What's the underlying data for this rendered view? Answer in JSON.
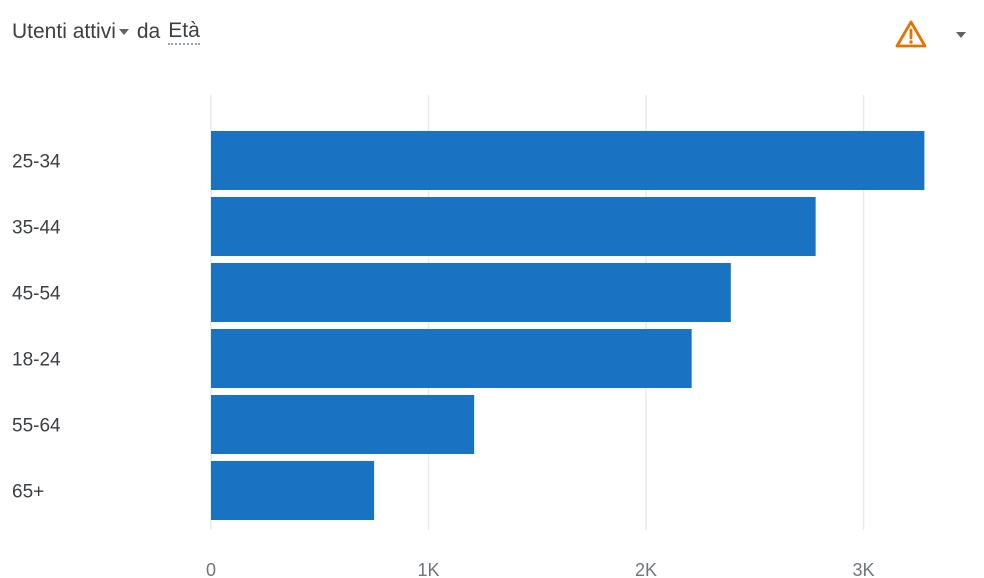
{
  "header": {
    "metric_label": "Utenti attivi",
    "connector": "da",
    "dimension_label": "Età"
  },
  "icons": {
    "warning": "warning-triangle-icon",
    "menu": "chevron-down-icon"
  },
  "colors": {
    "bar": "#1a73c2",
    "warning": "#e37400",
    "grid": "#e8eaed"
  },
  "chart_data": {
    "type": "bar",
    "orientation": "horizontal",
    "categories": [
      "25-34",
      "35-44",
      "45-54",
      "18-24",
      "55-64",
      "65+"
    ],
    "values": [
      3280,
      2780,
      2390,
      2210,
      1210,
      750
    ],
    "xlim": [
      0,
      3500
    ],
    "x_ticks": [
      0,
      1000,
      2000,
      3000
    ],
    "x_tick_labels": [
      "0",
      "1K",
      "2K",
      "3K"
    ],
    "grid": true,
    "legend": "none"
  }
}
